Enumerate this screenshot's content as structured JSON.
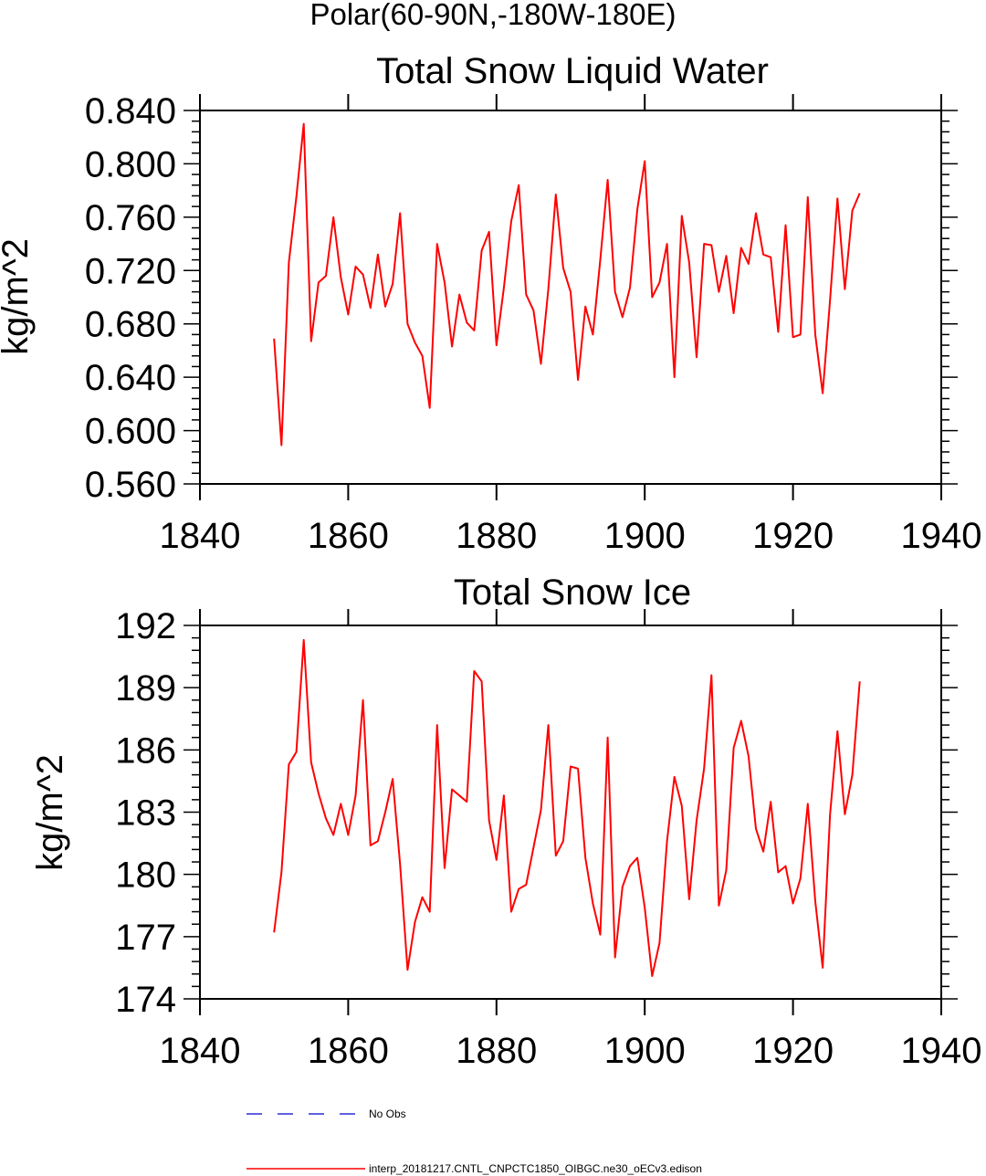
{
  "page": {
    "super_title": "Polar(60-90N,-180W-180E)"
  },
  "legend": [
    {
      "label": "No Obs",
      "color": "#0000cc",
      "dash": true
    },
    {
      "label": "interp_20181217.CNTL_CNPCTC1850_OIBGC.ne30_oECv3.edison",
      "color": "#ff0000",
      "dash": false
    }
  ],
  "chart_data": [
    {
      "type": "line",
      "title": "Total Snow Liquid Water",
      "xlabel": "",
      "ylabel": "kg/m^2",
      "xlim": [
        1840,
        1940
      ],
      "ylim": [
        0.56,
        0.84
      ],
      "x_ticks": [
        1840,
        1860,
        1880,
        1900,
        1920,
        1940
      ],
      "y_ticks": [
        0.56,
        0.6,
        0.64,
        0.68,
        0.72,
        0.76,
        0.8,
        0.84
      ],
      "y_tick_labels": [
        "0.560",
        "0.600",
        "0.640",
        "0.680",
        "0.720",
        "0.760",
        "0.800",
        "0.840"
      ],
      "series": [
        {
          "color": "#ff0000",
          "x": [
            1850,
            1851,
            1852,
            1853,
            1854,
            1855,
            1856,
            1857,
            1858,
            1859,
            1860,
            1861,
            1862,
            1863,
            1864,
            1865,
            1866,
            1867,
            1868,
            1869,
            1870,
            1871,
            1872,
            1873,
            1874,
            1875,
            1876,
            1877,
            1878,
            1879,
            1880,
            1881,
            1882,
            1883,
            1884,
            1885,
            1886,
            1887,
            1888,
            1889,
            1890,
            1891,
            1892,
            1893,
            1894,
            1895,
            1896,
            1897,
            1898,
            1899,
            1900,
            1901,
            1902,
            1903,
            1904,
            1905,
            1906,
            1907,
            1908,
            1909,
            1910,
            1911,
            1912,
            1913,
            1914,
            1915,
            1916,
            1917,
            1918,
            1919,
            1920,
            1921,
            1922,
            1923,
            1924,
            1925,
            1926,
            1927,
            1928,
            1929
          ],
          "values": [
            0.669,
            0.589,
            0.726,
            0.775,
            0.83,
            0.667,
            0.711,
            0.716,
            0.76,
            0.715,
            0.687,
            0.723,
            0.717,
            0.692,
            0.732,
            0.693,
            0.71,
            0.763,
            0.68,
            0.666,
            0.656,
            0.617,
            0.74,
            0.711,
            0.663,
            0.702,
            0.681,
            0.675,
            0.735,
            0.749,
            0.664,
            0.707,
            0.757,
            0.784,
            0.702,
            0.69,
            0.65,
            0.706,
            0.777,
            0.722,
            0.704,
            0.638,
            0.693,
            0.672,
            0.728,
            0.788,
            0.704,
            0.685,
            0.707,
            0.766,
            0.802,
            0.7,
            0.711,
            0.74,
            0.64,
            0.761,
            0.726,
            0.655,
            0.74,
            0.739,
            0.704,
            0.731,
            0.688,
            0.737,
            0.725,
            0.763,
            0.732,
            0.73,
            0.674,
            0.754,
            0.67,
            0.672,
            0.775,
            0.672,
            0.628,
            0.698,
            0.774,
            0.706,
            0.765,
            0.778
          ]
        }
      ]
    },
    {
      "type": "line",
      "title": "Total Snow Ice",
      "xlabel": "",
      "ylabel": "kg/m^2",
      "xlim": [
        1840,
        1940
      ],
      "ylim": [
        174,
        192
      ],
      "x_ticks": [
        1840,
        1860,
        1880,
        1900,
        1920,
        1940
      ],
      "y_ticks": [
        174,
        177,
        180,
        183,
        186,
        189,
        192
      ],
      "y_tick_labels": [
        "174",
        "177",
        "180",
        "183",
        "186",
        "189",
        "192"
      ],
      "series": [
        {
          "color": "#ff0000",
          "x": [
            1850,
            1851,
            1852,
            1853,
            1854,
            1855,
            1856,
            1857,
            1858,
            1859,
            1860,
            1861,
            1862,
            1863,
            1864,
            1865,
            1866,
            1867,
            1868,
            1869,
            1870,
            1871,
            1872,
            1873,
            1874,
            1875,
            1876,
            1877,
            1878,
            1879,
            1880,
            1881,
            1882,
            1883,
            1884,
            1885,
            1886,
            1887,
            1888,
            1889,
            1890,
            1891,
            1892,
            1893,
            1894,
            1895,
            1896,
            1897,
            1898,
            1899,
            1900,
            1901,
            1902,
            1903,
            1904,
            1905,
            1906,
            1907,
            1908,
            1909,
            1910,
            1911,
            1912,
            1913,
            1914,
            1915,
            1916,
            1917,
            1918,
            1919,
            1920,
            1921,
            1922,
            1923,
            1924,
            1925,
            1926,
            1927,
            1928,
            1929
          ],
          "values": [
            177.2,
            180.1,
            185.3,
            185.9,
            191.3,
            185.4,
            183.9,
            182.7,
            181.9,
            183.4,
            181.9,
            183.8,
            188.4,
            181.4,
            181.6,
            183.0,
            184.6,
            180.5,
            175.4,
            177.7,
            178.9,
            178.2,
            187.2,
            180.3,
            184.1,
            183.8,
            183.5,
            189.8,
            189.3,
            182.6,
            180.7,
            183.8,
            178.2,
            179.3,
            179.5,
            181.3,
            183.1,
            187.2,
            180.9,
            181.6,
            185.2,
            185.1,
            180.8,
            178.6,
            177.1,
            186.6,
            176.0,
            179.4,
            180.4,
            180.8,
            178.4,
            175.1,
            176.7,
            181.6,
            184.7,
            183.3,
            178.8,
            182.6,
            185.1,
            189.6,
            178.5,
            180.2,
            186.1,
            187.4,
            185.7,
            182.2,
            181.1,
            183.5,
            180.1,
            180.4,
            178.6,
            179.8,
            183.4,
            178.7,
            175.5,
            182.9,
            186.9,
            182.9,
            184.8,
            189.3
          ]
        }
      ]
    }
  ]
}
